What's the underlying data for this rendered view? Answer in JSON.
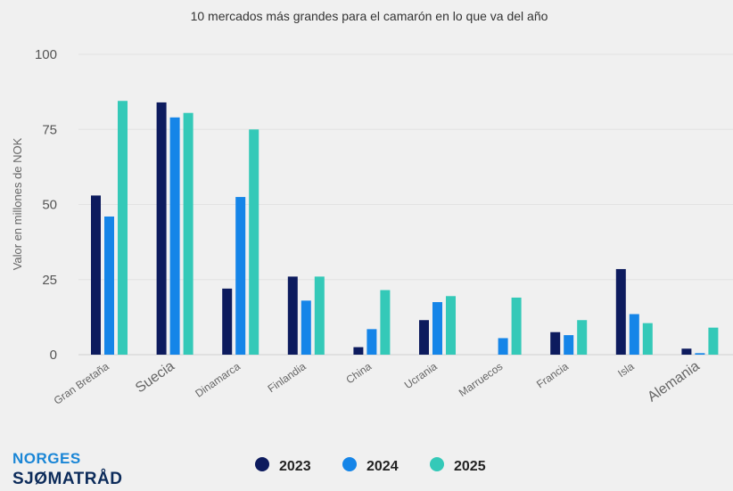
{
  "chart_data": {
    "type": "bar",
    "title": "10 mercados más grandes para el camarón en lo que va del año",
    "xlabel": "",
    "ylabel": "Valor en millones de NOK",
    "ylim": [
      0,
      100
    ],
    "yticks": [
      0,
      25,
      50,
      75,
      100
    ],
    "grid": true,
    "legend_position": "bottom",
    "categories": [
      "Gran Bretaña",
      "Suecia",
      "Dinamarca",
      "Finlandia",
      "China",
      "Ucrania",
      "Marruecos",
      "Francia",
      "Isla",
      "Alemania"
    ],
    "series": [
      {
        "name": "2023",
        "color": "#0d1b5e",
        "values": [
          53,
          84,
          22,
          26,
          2.5,
          11.5,
          0,
          7.5,
          28.5,
          2
        ]
      },
      {
        "name": "2024",
        "color": "#1585e8",
        "values": [
          46,
          79,
          52.5,
          18,
          8.5,
          17.5,
          5.5,
          6.5,
          13.5,
          0.5
        ]
      },
      {
        "name": "2025",
        "color": "#34c9b8",
        "values": [
          84.5,
          80.5,
          75,
          26,
          21.5,
          19.5,
          19,
          11.5,
          10.5,
          9
        ]
      }
    ]
  },
  "logo": {
    "line1": "NORGES",
    "line2": "SJØMATRÅD"
  }
}
